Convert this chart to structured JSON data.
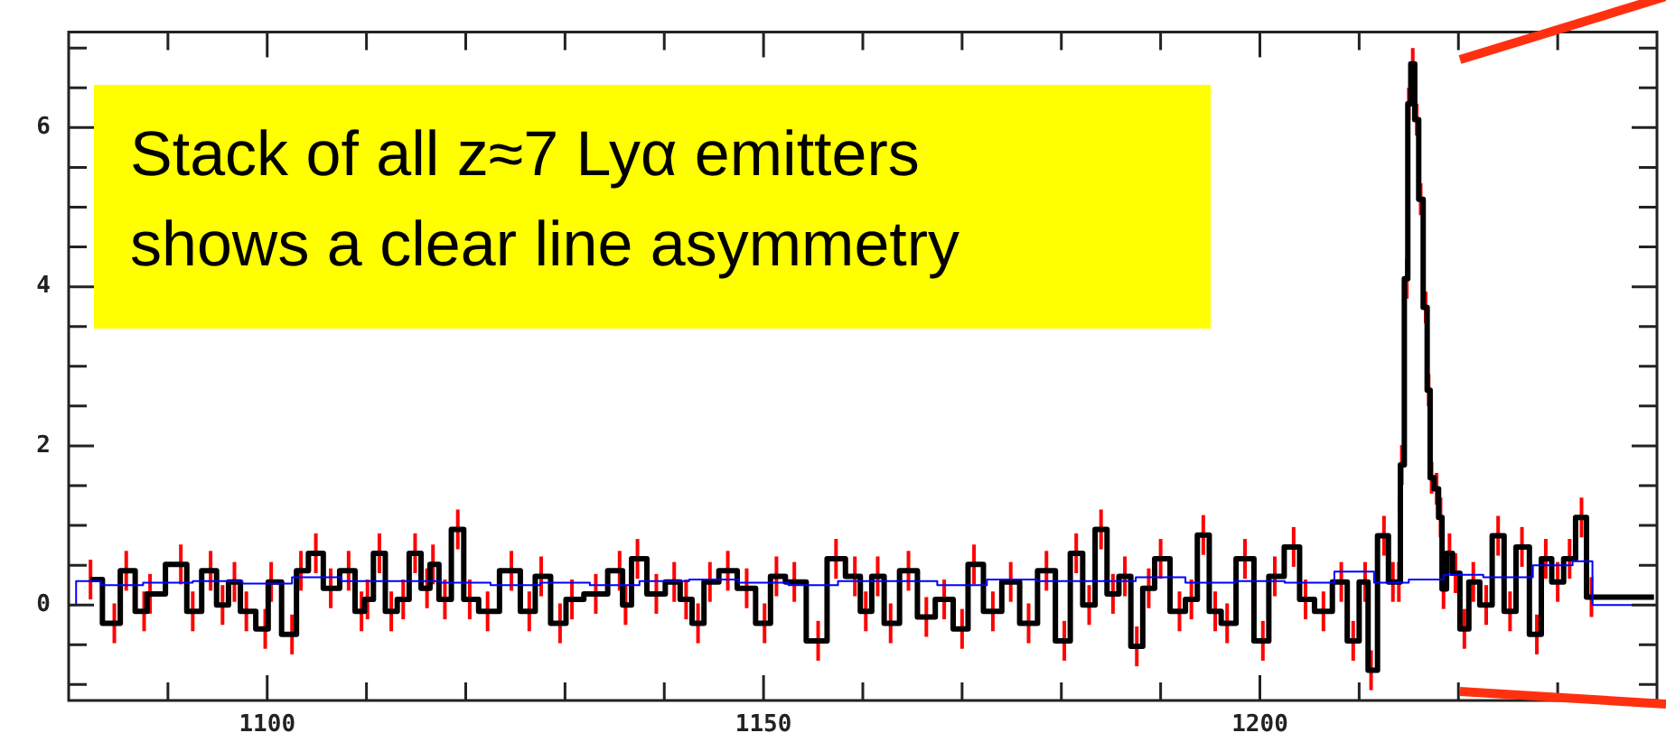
{
  "chart_data": {
    "type": "step",
    "annotations": [
      "Stack of all z≈7 Lyα emitters",
      "shows a clear line asymmetry"
    ],
    "xlim": [
      1080,
      1240
    ],
    "xticks": [
      {
        "value": 1090,
        "label": null
      },
      1100,
      {
        "value": 1110,
        "label": null
      },
      {
        "value": 1120,
        "label": null
      },
      {
        "value": 1130,
        "label": null
      },
      {
        "value": 1140,
        "label": null
      },
      1150,
      {
        "value": 1160,
        "label": null
      },
      {
        "value": 1170,
        "label": null
      },
      {
        "value": 1180,
        "label": null
      },
      {
        "value": 1190,
        "label": null
      },
      1200,
      {
        "value": 1210,
        "label": null
      },
      {
        "value": 1220,
        "label": null
      },
      {
        "value": 1230,
        "label": null
      }
    ],
    "ylim": [
      -1.2,
      7.2
    ],
    "yticks": [
      {
        "value": -1,
        "label": null
      },
      {
        "value": -0.5,
        "label": null
      },
      0,
      {
        "value": 0.5,
        "label": null
      },
      {
        "value": 1,
        "label": null
      },
      {
        "value": 1.5,
        "label": null
      },
      2,
      {
        "value": 2.5,
        "label": null
      },
      {
        "value": 3,
        "label": null
      },
      {
        "value": 3.5,
        "label": null
      },
      4,
      {
        "value": 4.5,
        "label": null
      },
      {
        "value": 5,
        "label": null
      },
      {
        "value": 5.5,
        "label": null
      },
      6,
      {
        "value": 6.5,
        "label": null
      },
      {
        "value": 7,
        "label": null
      }
    ],
    "series": [
      {
        "color": "#0000ff",
        "x": [
          1080,
          1081.5,
          1085,
          1090,
          1095,
          1100,
          1105,
          1110,
          1115,
          1120,
          1125,
          1130,
          1135,
          1140,
          1145,
          1150,
          1155,
          1160,
          1165,
          1170,
          1175,
          1180,
          1185,
          1190,
          1195,
          1200,
          1205,
          1210,
          1213,
          1217,
          1220,
          1225,
          1230,
          1233,
          1234,
          1240
        ],
        "values": [
          0,
          0.3,
          0.25,
          0.28,
          0.3,
          0.27,
          0.35,
          0.3,
          0.3,
          0.28,
          0.25,
          0.28,
          0.25,
          0.3,
          0.32,
          0.28,
          0.25,
          0.3,
          0.3,
          0.25,
          0.32,
          0.3,
          0.3,
          0.35,
          0.28,
          0.3,
          0.28,
          0.42,
          0.28,
          0.32,
          0.38,
          0.35,
          0.5,
          0.55,
          0,
          0
        ]
      },
      {
        "color": "#000000",
        "x": [
          1082.2,
          1084.6,
          1085.8,
          1087.6,
          1088.2,
          1091.3,
          1092.5,
          1094.3,
          1095.5,
          1096.7,
          1097.9,
          1099.8,
          1100.4,
          1102.5,
          1103.4,
          1104.9,
          1106.4,
          1108.2,
          1109.5,
          1110.1,
          1111.3,
          1112.5,
          1113.7,
          1114.9,
          1116.1,
          1116.7,
          1117.9,
          1119.2,
          1120.4,
          1122.2,
          1124.6,
          1126.4,
          1127.6,
          1129.5,
          1130.7,
          1133.1,
          1135.5,
          1136.1,
          1137.3,
          1139.2,
          1141.0,
          1142.2,
          1143.4,
          1144.6,
          1146.4,
          1148.3,
          1150.1,
          1151.3,
          1153.1,
          1155.5,
          1157.3,
          1159.2,
          1160.3,
          1161.5,
          1162.8,
          1164.6,
          1166.4,
          1168.2,
          1170.0,
          1171.2,
          1173.1,
          1174.9,
          1176.7,
          1178.5,
          1180.3,
          1181.5,
          1182.8,
          1184.0,
          1185.2,
          1186.4,
          1187.6,
          1188.8,
          1190.0,
          1191.9,
          1193.1,
          1194.3,
          1195.5,
          1196.7,
          1198.5,
          1200.3,
          1201.5,
          1203.4,
          1204.6,
          1206.4,
          1208.2,
          1209.4,
          1210.6,
          1211.2,
          1212.5,
          1213.4,
          1214.0,
          1214.3,
          1214.8,
          1215.0,
          1215.4,
          1215.8,
          1216.2,
          1216.7,
          1217.0,
          1217.3,
          1217.8,
          1218.2,
          1218.5,
          1219.1,
          1219.7,
          1220.6,
          1221.5,
          1222.8,
          1224.0,
          1225.2,
          1226.4,
          1227.9,
          1228.8,
          1230.0,
          1231.2,
          1232.4,
          1233.4,
          1234.0,
          1239.7
        ],
        "values": [
          0.32,
          -0.23,
          0.43,
          -0.08,
          0.14,
          0.51,
          -0.08,
          0.43,
          0,
          0.29,
          -0.08,
          -0.3,
          0.29,
          -0.37,
          0.43,
          0.65,
          0.21,
          0.43,
          -0.08,
          0.07,
          0.65,
          -0.08,
          0.07,
          0.65,
          0.21,
          0.51,
          0.07,
          0.95,
          0.07,
          -0.08,
          0.43,
          -0.08,
          0.36,
          -0.23,
          0.07,
          0.14,
          0.43,
          0,
          0.58,
          0.14,
          0.29,
          0.07,
          -0.23,
          0.29,
          0.43,
          0.21,
          -0.23,
          0.36,
          0.29,
          -0.45,
          0.58,
          0.36,
          -0.08,
          0.36,
          -0.23,
          0.43,
          -0.15,
          0.07,
          -0.3,
          0.51,
          -0.08,
          0.29,
          -0.23,
          0.43,
          -0.45,
          0.65,
          0,
          0.95,
          0.14,
          0.36,
          -0.52,
          0.21,
          0.58,
          -0.08,
          0.07,
          0.88,
          -0.08,
          -0.23,
          0.58,
          -0.45,
          0.36,
          0.73,
          0.07,
          -0.08,
          0.29,
          -0.45,
          0.29,
          -0.82,
          0.87,
          0.29,
          0.29,
          1.76,
          4.1,
          6.3,
          6.8,
          6.1,
          5.1,
          3.74,
          2.7,
          1.6,
          1.46,
          1.1,
          0.2,
          0.65,
          0.4,
          -0.3,
          0.29,
          0,
          0.87,
          -0.08,
          0.73,
          -0.37,
          0.58,
          0.29,
          0.58,
          1.1,
          0.1,
          0.1,
          0.1
        ],
        "errors": [
          0.25,
          0.25,
          0.25,
          0.25,
          0.25,
          0.25,
          0.25,
          0.25,
          0.25,
          0.25,
          0.25,
          0.25,
          0.25,
          0.25,
          0.25,
          0.25,
          0.25,
          0.25,
          0.25,
          0.25,
          0.25,
          0.25,
          0.25,
          0.25,
          0.25,
          0.25,
          0.25,
          0.25,
          0.25,
          0.25,
          0.25,
          0.25,
          0.25,
          0.25,
          0.25,
          0.25,
          0.25,
          0.25,
          0.25,
          0.25,
          0.25,
          0.25,
          0.25,
          0.25,
          0.25,
          0.25,
          0.25,
          0.25,
          0.25,
          0.25,
          0.25,
          0.25,
          0.25,
          0.25,
          0.25,
          0.25,
          0.25,
          0.25,
          0.25,
          0.25,
          0.25,
          0.25,
          0.25,
          0.25,
          0.25,
          0.25,
          0.25,
          0.25,
          0.25,
          0.25,
          0.25,
          0.25,
          0.25,
          0.25,
          0.25,
          0.25,
          0.25,
          0.25,
          0.25,
          0.25,
          0.25,
          0.25,
          0.25,
          0.25,
          0.25,
          0.25,
          0.25,
          0.25,
          0.25,
          0.25,
          0.25,
          0.25,
          0.25,
          0.2,
          0.2,
          0.2,
          0.2,
          0.2,
          0.2,
          0.2,
          0.2,
          0.25,
          0.25,
          0.25,
          0.25,
          0.25,
          0.25,
          0.25,
          0.25,
          0.25,
          0.25,
          0.25,
          0.25,
          0.25,
          0.25,
          0.25,
          0.25,
          null,
          null
        ]
      }
    ]
  }
}
